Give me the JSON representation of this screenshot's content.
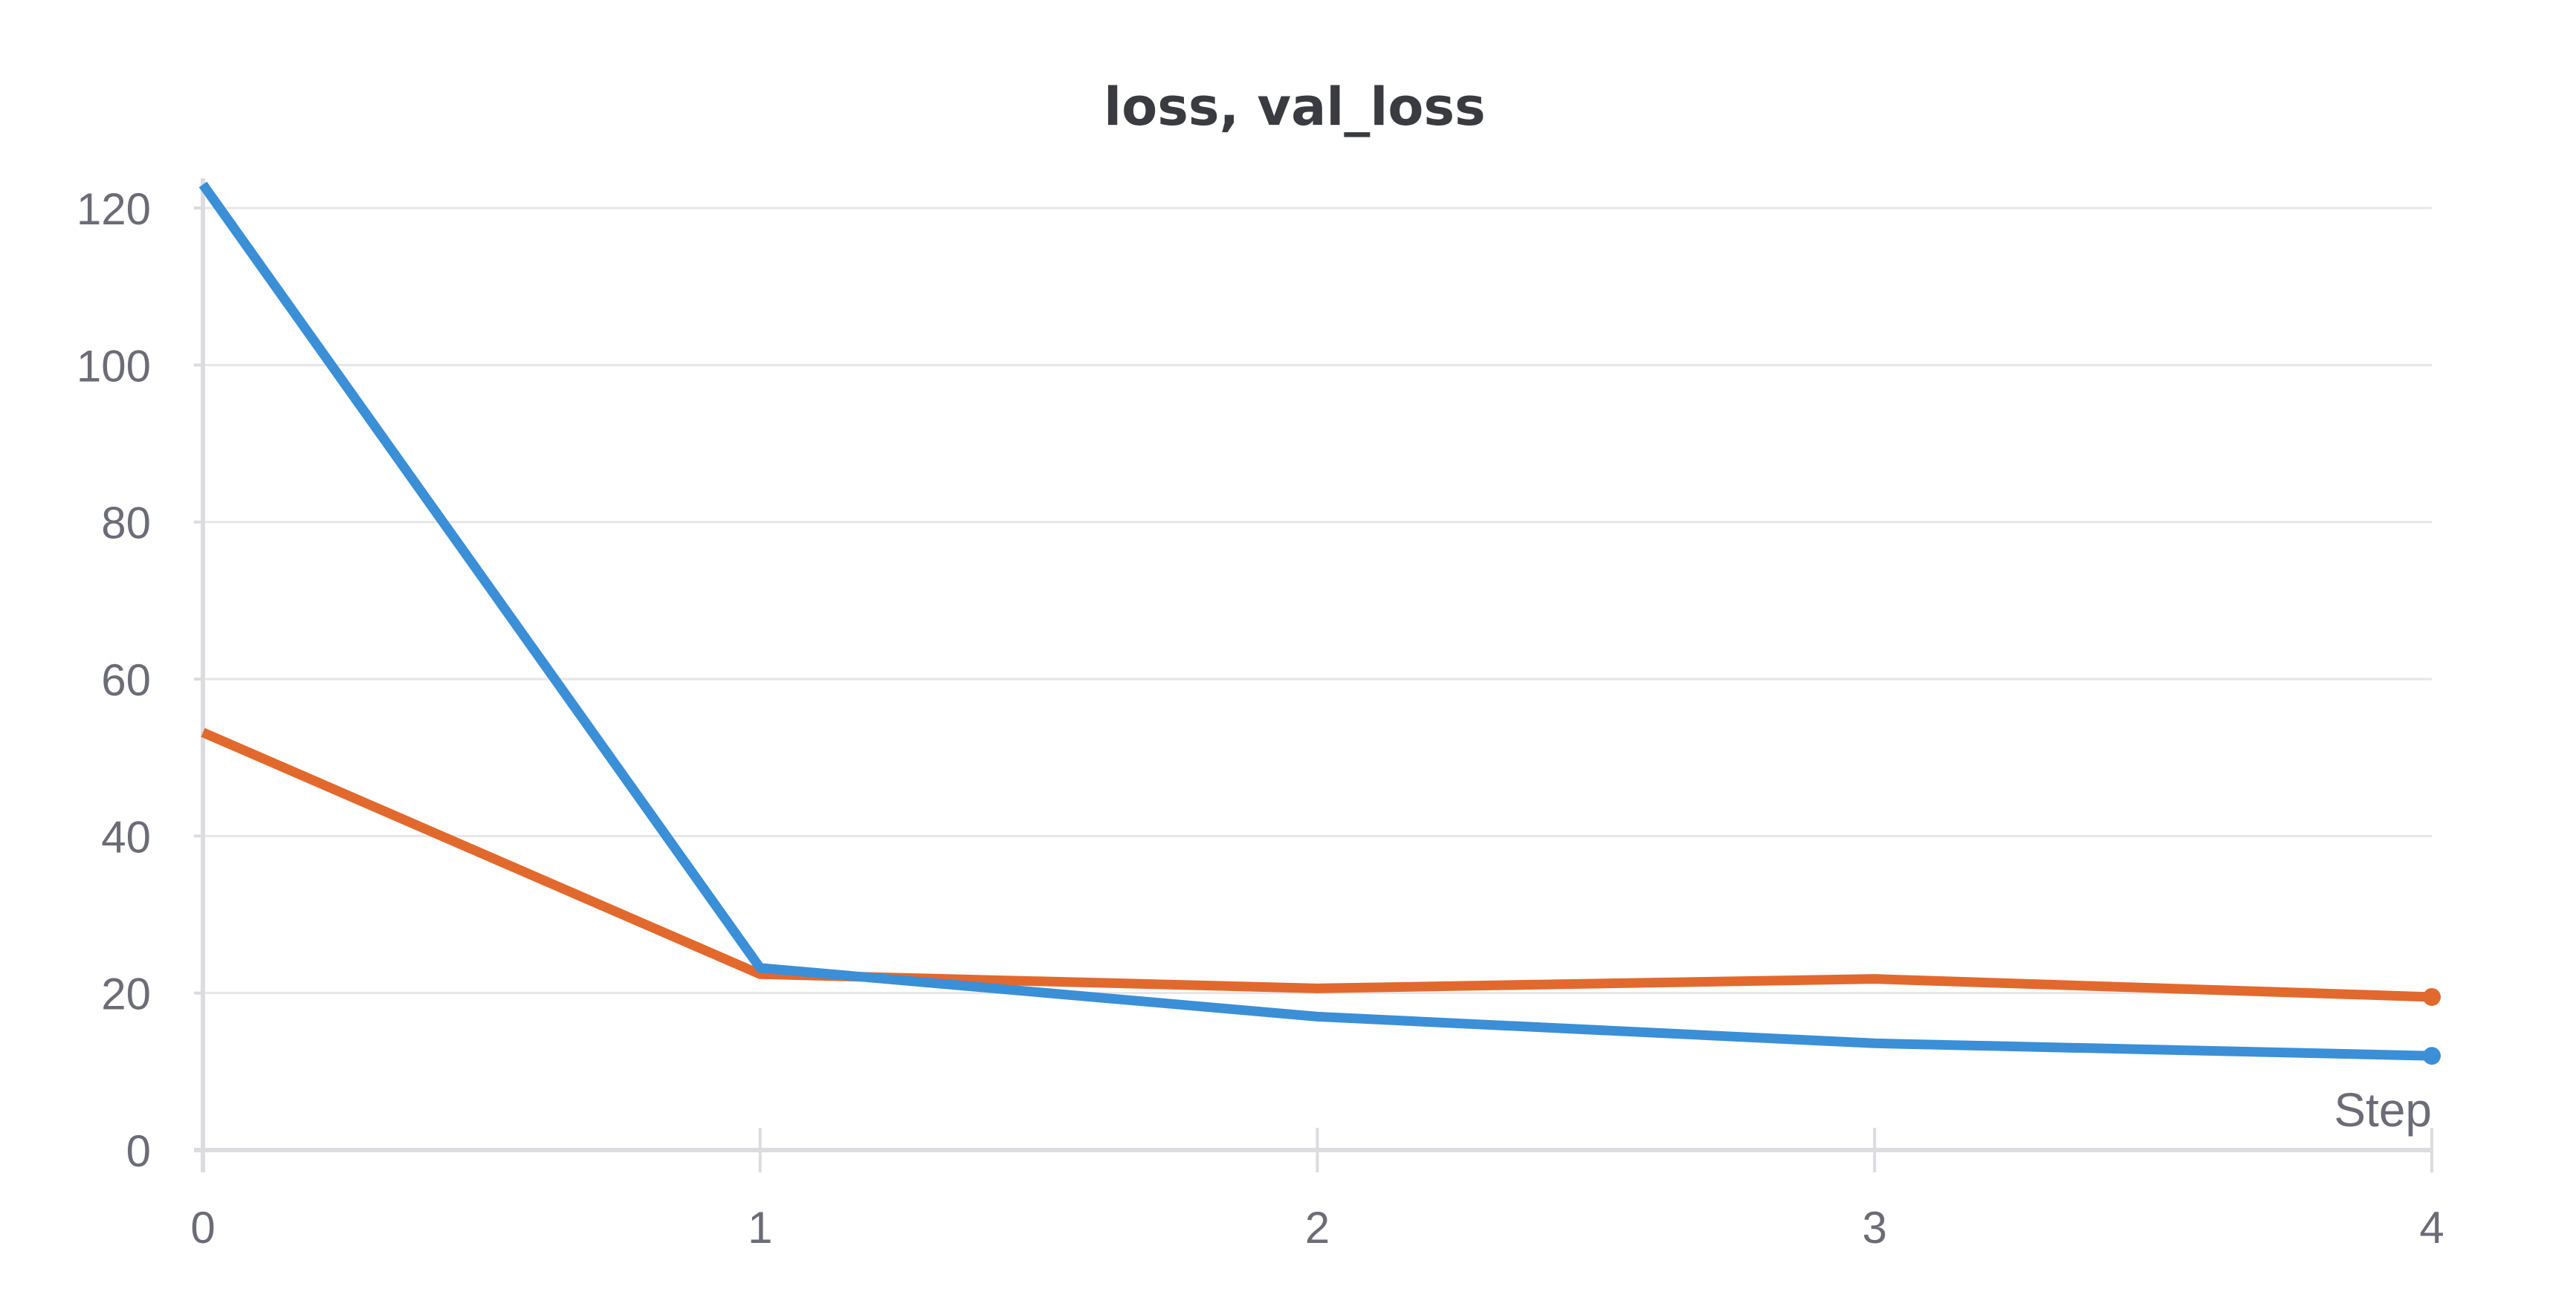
{
  "chart_data": {
    "type": "line",
    "title": "loss, val_loss",
    "xlabel": "Step",
    "ylabel": "",
    "x": [
      0,
      1,
      2,
      3,
      4
    ],
    "xlim": [
      0,
      4
    ],
    "ylim": [
      0,
      120
    ],
    "x_ticks": [
      "0",
      "1",
      "2",
      "3",
      "4"
    ],
    "y_ticks": [
      "0",
      "20",
      "40",
      "60",
      "80",
      "100",
      "120"
    ],
    "grid": "horizontal",
    "legend": "none",
    "series": [
      {
        "color": "#3b8fd6",
        "values": [
          123,
          23.2,
          17,
          13.6,
          12
        ]
      },
      {
        "color": "#e2692d",
        "values": [
          53.2,
          22.4,
          20.6,
          21.8,
          19.5
        ]
      }
    ]
  }
}
